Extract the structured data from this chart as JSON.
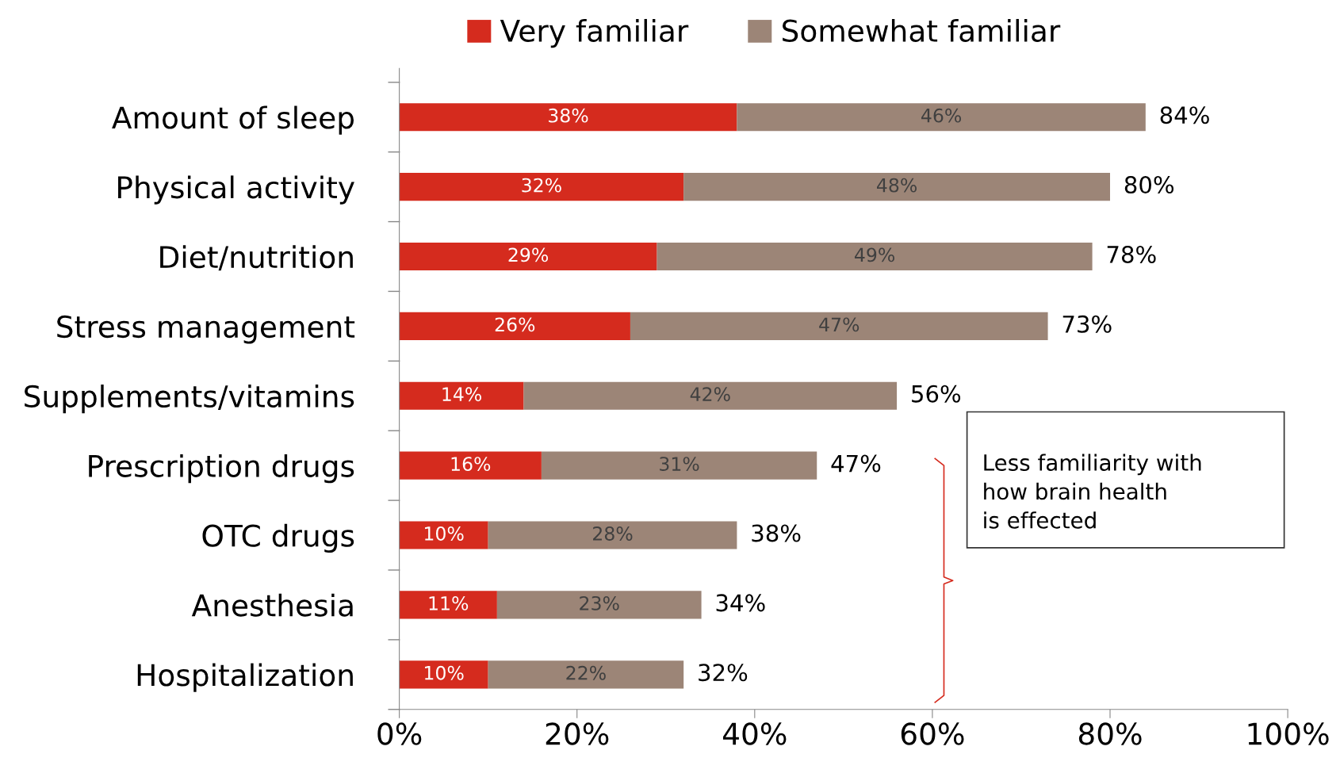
{
  "chart_data": {
    "type": "bar",
    "orientation": "horizontal",
    "stacked": true,
    "legend": "top",
    "grid": false,
    "categories": [
      "Amount of sleep",
      "Physical activity",
      "Diet/nutrition",
      "Stress management",
      "Supplements/vitamins",
      "Prescription drugs",
      "OTC drugs",
      "Anesthesia",
      "Hospitalization"
    ],
    "series": [
      {
        "name": "Very familiar",
        "color": "#d52b1e",
        "values": [
          38,
          32,
          29,
          26,
          14,
          16,
          10,
          11,
          10
        ],
        "value_labels": [
          "38%",
          "32%",
          "29%",
          "26%",
          "14%",
          "16%",
          "10%",
          "11%",
          "10%"
        ]
      },
      {
        "name": "Somewhat familiar",
        "color": "#9c8577",
        "values": [
          46,
          48,
          49,
          47,
          42,
          31,
          28,
          23,
          22
        ],
        "value_labels": [
          "46%",
          "48%",
          "49%",
          "47%",
          "42%",
          "31%",
          "28%",
          "23%",
          "22%"
        ]
      }
    ],
    "totals": [
      "84%",
      "80%",
      "78%",
      "73%",
      "56%",
      "47%",
      "38%",
      "34%",
      "32%"
    ],
    "xlim": [
      0,
      100
    ],
    "xticks": [
      {
        "value": 0,
        "label": "0%"
      },
      {
        "value": 20,
        "label": "20%"
      },
      {
        "value": 40,
        "label": "40%"
      },
      {
        "value": 60,
        "label": "60%"
      },
      {
        "value": 80,
        "label": "80%"
      },
      {
        "value": 100,
        "label": "100%"
      }
    ],
    "annotations": [
      "Less familiarity with\nhow brain health\nis effected"
    ]
  }
}
